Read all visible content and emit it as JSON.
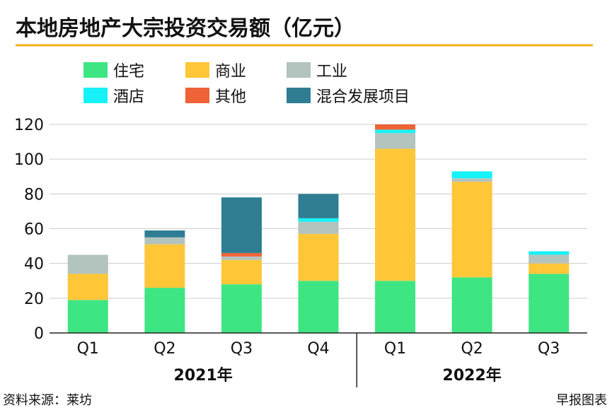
{
  "chart_data": {
    "type": "bar",
    "stacked": true,
    "title": "本地房地产大宗投资交易额（亿元）",
    "categories": [
      "Q1",
      "Q2",
      "Q3",
      "Q4",
      "Q1",
      "Q2",
      "Q3"
    ],
    "groups": [
      {
        "label": "2021年",
        "categories": [
          "Q1",
          "Q2",
          "Q3",
          "Q4"
        ]
      },
      {
        "label": "2022年",
        "categories": [
          "Q1",
          "Q2",
          "Q3"
        ]
      }
    ],
    "series": [
      {
        "name": "住宅",
        "color": "#3ee683",
        "values": [
          19,
          26,
          28,
          30,
          30,
          32,
          34
        ]
      },
      {
        "name": "商业",
        "color": "#ffc637",
        "values": [
          15,
          25,
          14,
          27,
          76,
          55,
          6
        ]
      },
      {
        "name": "工业",
        "color": "#b3c3bd",
        "values": [
          11,
          4,
          2,
          7,
          9,
          2,
          5
        ]
      },
      {
        "name": "酒店",
        "color": "#16f2f7",
        "values": [
          0,
          0,
          0,
          2,
          2,
          4,
          2
        ]
      },
      {
        "name": "其他",
        "color": "#f06237",
        "values": [
          0,
          0,
          2,
          0,
          3,
          0,
          0
        ]
      },
      {
        "name": "混合发展项目",
        "color": "#2e7d93",
        "values": [
          0,
          4,
          32,
          14,
          0,
          0,
          0
        ]
      }
    ],
    "ylim": [
      0,
      120
    ],
    "yticks": [
      0,
      20,
      40,
      60,
      80,
      100,
      120
    ],
    "grid": true,
    "legend_position": "top"
  },
  "footer": {
    "source": "资料来源：莱坊",
    "credit": "早报图表"
  },
  "colors": {
    "title_underline": "#f2b21b",
    "grid": "#cccccc",
    "axis": "#222222"
  }
}
